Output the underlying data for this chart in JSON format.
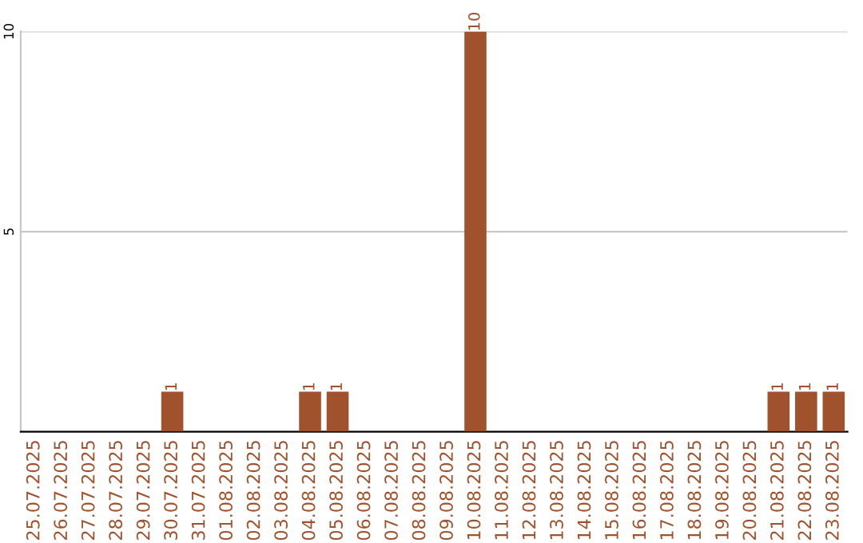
{
  "chart_data": {
    "type": "bar",
    "categories": [
      "25.07.2025",
      "26.07.2025",
      "27.07.2025",
      "28.07.2025",
      "29.07.2025",
      "30.07.2025",
      "31.07.2025",
      "01.08.2025",
      "02.08.2025",
      "03.08.2025",
      "04.08.2025",
      "05.08.2025",
      "06.08.2025",
      "07.08.2025",
      "08.08.2025",
      "09.08.2025",
      "10.08.2025",
      "11.08.2025",
      "12.08.2025",
      "13.08.2025",
      "14.08.2025",
      "15.08.2025",
      "16.08.2025",
      "17.08.2025",
      "18.08.2025",
      "19.08.2025",
      "20.08.2025",
      "21.08.2025",
      "22.08.2025",
      "23.08.2025"
    ],
    "values": [
      0,
      0,
      0,
      0,
      0,
      1,
      0,
      0,
      0,
      0,
      1,
      1,
      0,
      0,
      0,
      0,
      10,
      0,
      0,
      0,
      0,
      0,
      0,
      0,
      0,
      0,
      0,
      1,
      1,
      1
    ],
    "value_labels": [
      null,
      null,
      null,
      null,
      null,
      "1",
      null,
      null,
      null,
      null,
      "1",
      "1",
      null,
      null,
      null,
      null,
      "10",
      null,
      null,
      null,
      null,
      null,
      null,
      null,
      null,
      null,
      null,
      "1",
      "1",
      "1"
    ],
    "color": "#a0522d",
    "ylim": [
      0,
      10
    ],
    "yticks": [
      5,
      10
    ],
    "grid": "y"
  }
}
